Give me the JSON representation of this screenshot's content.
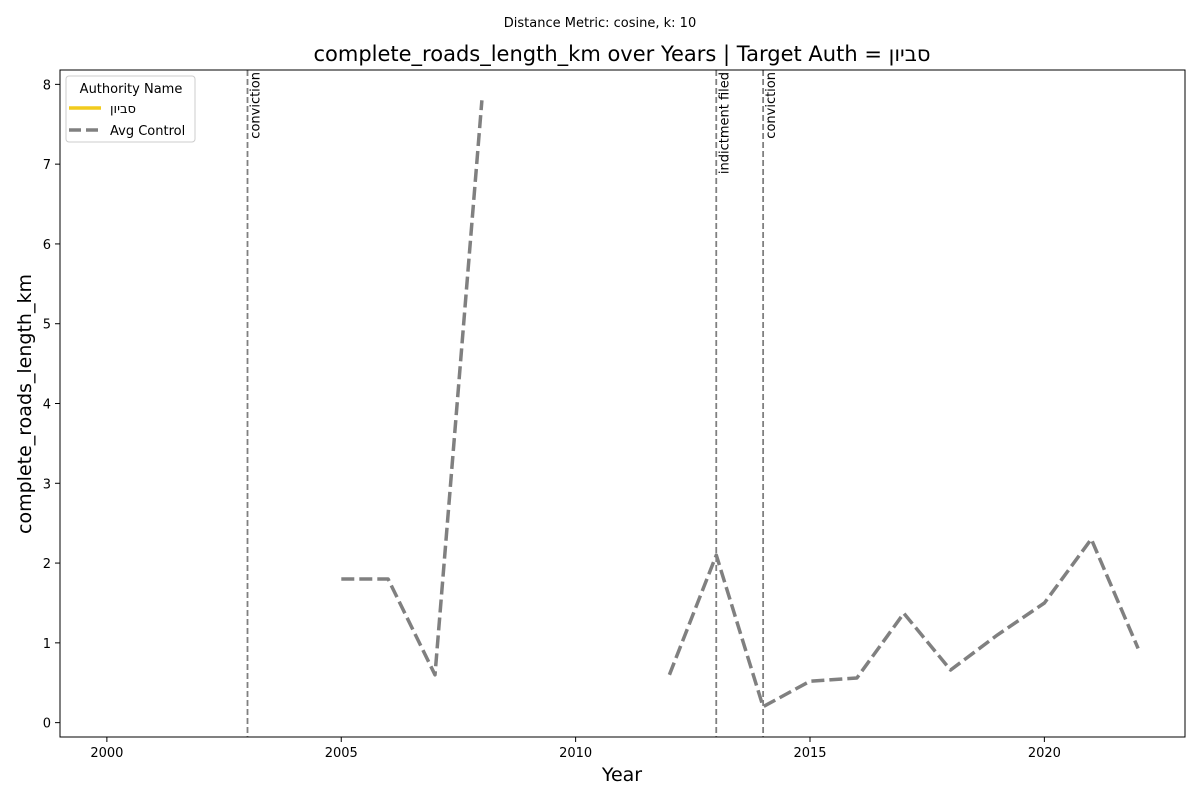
{
  "chart_data": {
    "type": "line",
    "suptitle": "Distance Metric: cosine, k: 10",
    "title": "complete_roads_length_km over Years | Target Auth = סביון",
    "xlabel": "Year",
    "ylabel": "complete_roads_length_km",
    "xlim": [
      1999,
      2023
    ],
    "ylim": [
      -0.18,
      8.18
    ],
    "xticks": [
      2000,
      2005,
      2010,
      2015,
      2020
    ],
    "yticks": [
      0,
      1,
      2,
      3,
      4,
      5,
      6,
      7,
      8
    ],
    "grid": false,
    "legend": {
      "title": "Authority Name",
      "placement": "top-left",
      "entries": [
        {
          "label": "סביון",
          "color": "#f2cb1d",
          "style": "solid"
        },
        {
          "label": "Avg Control",
          "color": "#808080",
          "style": "dashed"
        }
      ]
    },
    "series": [
      {
        "name": "סביון",
        "color": "#f2cb1d",
        "style": "solid",
        "x": [],
        "y": []
      },
      {
        "name": "Avg Control",
        "color": "#808080",
        "style": "dashed",
        "x": [
          2005,
          2006,
          2007,
          2008,
          2009,
          2010,
          2011,
          2012,
          2013,
          2014,
          2015,
          2016,
          2017,
          2018,
          2019,
          2020,
          2021,
          2022
        ],
        "y": [
          1.8,
          1.8,
          0.6,
          7.8,
          null,
          null,
          null,
          0.6,
          2.1,
          0.2,
          0.52,
          0.56,
          1.37,
          0.66,
          1.1,
          1.5,
          2.3,
          0.93
        ]
      }
    ],
    "events": [
      {
        "x": 2003,
        "label": "conviction"
      },
      {
        "x": 2013,
        "label": "indictment filed"
      },
      {
        "x": 2014,
        "label": "conviction"
      }
    ]
  }
}
